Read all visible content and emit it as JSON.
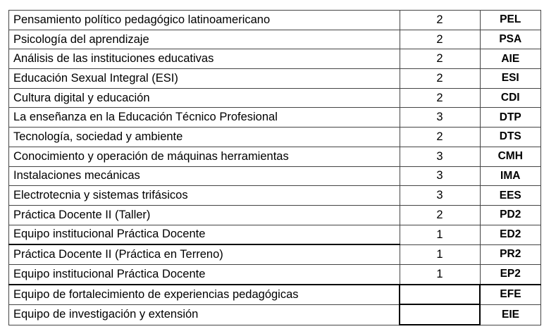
{
  "table": {
    "rows": [
      {
        "name": "Pensamiento político pedagógico latinoamericano",
        "hours": "2",
        "code": "PEL"
      },
      {
        "name": "Psicología del aprendizaje",
        "hours": "2",
        "code": "PSA"
      },
      {
        "name": "Análisis de las instituciones educativas",
        "hours": "2",
        "code": "AIE"
      },
      {
        "name": "Educación Sexual Integral (ESI)",
        "hours": "2",
        "code": "ESI"
      },
      {
        "name": "Cultura digital y educación",
        "hours": "2",
        "code": "CDI"
      },
      {
        "name": "La enseñanza en la Educación Técnico Profesional",
        "hours": "3",
        "code": "DTP"
      },
      {
        "name": "Tecnología, sociedad y ambiente",
        "hours": "2",
        "code": "DTS"
      },
      {
        "name": "Conocimiento y operación de máquinas herramientas",
        "hours": "3",
        "code": "CMH"
      },
      {
        "name": "Instalaciones mecánicas",
        "hours": "3",
        "code": "IMA"
      },
      {
        "name": "Electrotecnia y sistemas trifásicos",
        "hours": "3",
        "code": "EES"
      },
      {
        "name": "Práctica Docente II (Taller)",
        "hours": "2",
        "code": "PD2"
      },
      {
        "name": "Equipo institucional Práctica Docente",
        "hours": "1",
        "code": "ED2"
      },
      {
        "name": "Práctica Docente II (Práctica en Terreno)",
        "hours": "1",
        "code": "PR2"
      },
      {
        "name": "Equipo institucional Práctica Docente",
        "hours": "1",
        "code": "EP2"
      },
      {
        "name": "Equipo de fortalecimiento de experiencias pedagógicas",
        "hours": "",
        "code": "EFE"
      },
      {
        "name": "Equipo de investigación y extensión",
        "hours": "",
        "code": "EIE"
      }
    ]
  }
}
